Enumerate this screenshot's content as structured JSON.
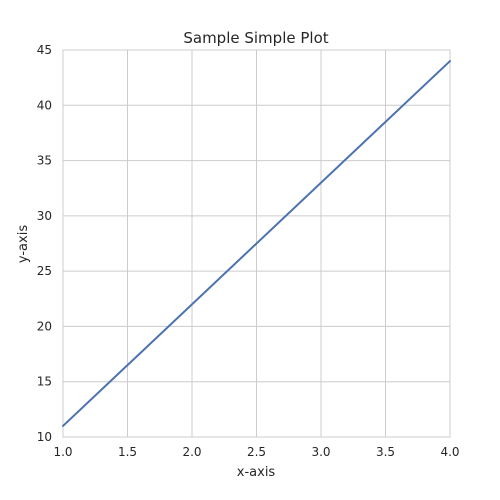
{
  "chart_data": {
    "type": "line",
    "title": "Sample Simple Plot",
    "xlabel": "x-axis",
    "ylabel": "y-axis",
    "xlim": [
      1.0,
      4.0
    ],
    "ylim": [
      10,
      45
    ],
    "x_ticks": [
      "1.0",
      "1.5",
      "2.0",
      "2.5",
      "3.0",
      "3.5",
      "4.0"
    ],
    "y_ticks": [
      "10",
      "15",
      "20",
      "25",
      "30",
      "35",
      "40",
      "45"
    ],
    "grid": true,
    "series": [
      {
        "x": [
          1.0,
          4.0
        ],
        "y": [
          11,
          44
        ],
        "color": "#4c72b0"
      }
    ]
  }
}
